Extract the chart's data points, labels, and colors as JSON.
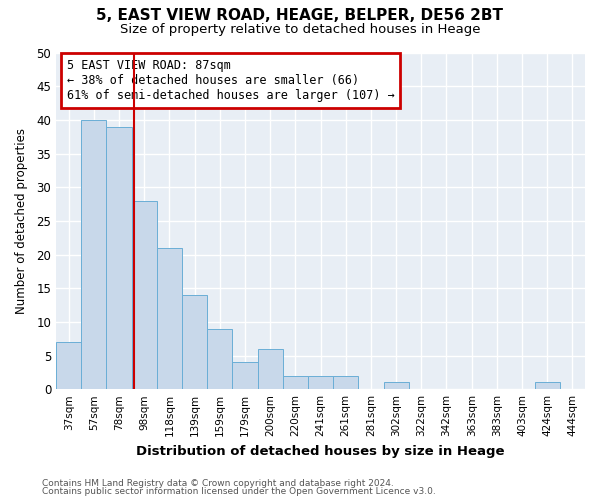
{
  "title1": "5, EAST VIEW ROAD, HEAGE, BELPER, DE56 2BT",
  "title2": "Size of property relative to detached houses in Heage",
  "xlabel": "Distribution of detached houses by size in Heage",
  "ylabel": "Number of detached properties",
  "categories": [
    "37sqm",
    "57sqm",
    "78sqm",
    "98sqm",
    "118sqm",
    "139sqm",
    "159sqm",
    "179sqm",
    "200sqm",
    "220sqm",
    "241sqm",
    "261sqm",
    "281sqm",
    "302sqm",
    "322sqm",
    "342sqm",
    "363sqm",
    "383sqm",
    "403sqm",
    "424sqm",
    "444sqm"
  ],
  "values": [
    7,
    40,
    39,
    28,
    21,
    14,
    9,
    4,
    6,
    2,
    2,
    2,
    0,
    1,
    0,
    0,
    0,
    0,
    0,
    1,
    0
  ],
  "bar_color": "#c8d8ea",
  "bar_edge_color": "#6aaed6",
  "red_line_x": 2.575,
  "annotation_text": "5 EAST VIEW ROAD: 87sqm\n← 38% of detached houses are smaller (66)\n61% of semi-detached houses are larger (107) →",
  "annotation_box_color": "white",
  "annotation_box_edge": "#cc0000",
  "ylim": [
    0,
    50
  ],
  "yticks": [
    0,
    5,
    10,
    15,
    20,
    25,
    30,
    35,
    40,
    45,
    50
  ],
  "footer1": "Contains HM Land Registry data © Crown copyright and database right 2024.",
  "footer2": "Contains public sector information licensed under the Open Government Licence v3.0.",
  "bg_color": "#ffffff",
  "plot_bg_color": "#e8eef5",
  "grid_color": "#ffffff",
  "title1_fontsize": 11,
  "title2_fontsize": 9.5,
  "xlabel_fontsize": 9.5,
  "ylabel_fontsize": 8.5
}
